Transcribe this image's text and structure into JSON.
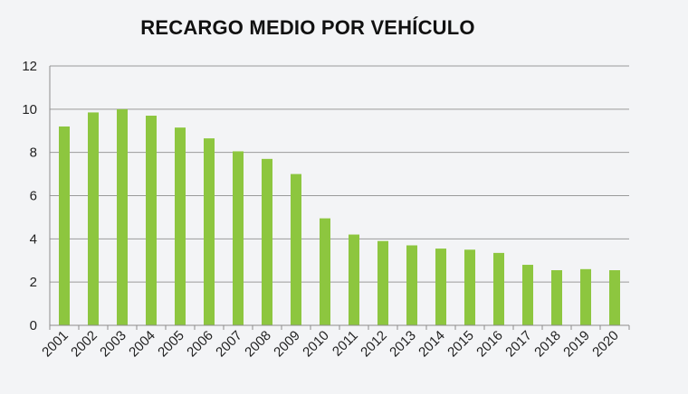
{
  "chart_data": {
    "type": "bar",
    "title": "RECARGO MEDIO POR VEHÍCULO",
    "xlabel": "",
    "ylabel": "",
    "categories": [
      "2001",
      "2002",
      "2003",
      "2004",
      "2005",
      "2006",
      "2007",
      "2008",
      "2009",
      "2010",
      "2011",
      "2012",
      "2013",
      "2014",
      "2015",
      "2016",
      "2017",
      "2018",
      "2019",
      "2020"
    ],
    "values": [
      9.2,
      9.85,
      10.0,
      9.7,
      9.15,
      8.65,
      8.05,
      7.7,
      7.0,
      4.95,
      4.2,
      3.9,
      3.7,
      3.55,
      3.5,
      3.35,
      2.8,
      2.55,
      2.6,
      2.55
    ],
    "ylim": [
      0,
      12
    ],
    "yticks": [
      "0",
      "2",
      "4",
      "6",
      "8",
      "10",
      "12"
    ],
    "grid": true,
    "legend": "none",
    "bar_color": "#8dc63f",
    "grid_color": "#9a9a9a",
    "axis_color": "#8c8c8c"
  }
}
